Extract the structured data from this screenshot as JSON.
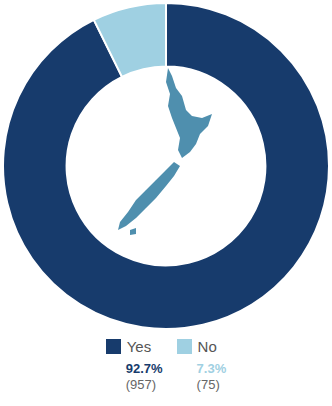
{
  "chart_data": {
    "type": "doughnut",
    "categories": [
      "Yes",
      "No"
    ],
    "values": [
      92.7,
      7.3
    ],
    "value_labels": [
      "92.7%",
      "7.3%"
    ],
    "counts": [
      957,
      75
    ],
    "count_labels": [
      "(957)",
      "(75)"
    ],
    "colors": [
      "#173b6c",
      "#9fd0e2"
    ],
    "legend": "bottom"
  }
}
